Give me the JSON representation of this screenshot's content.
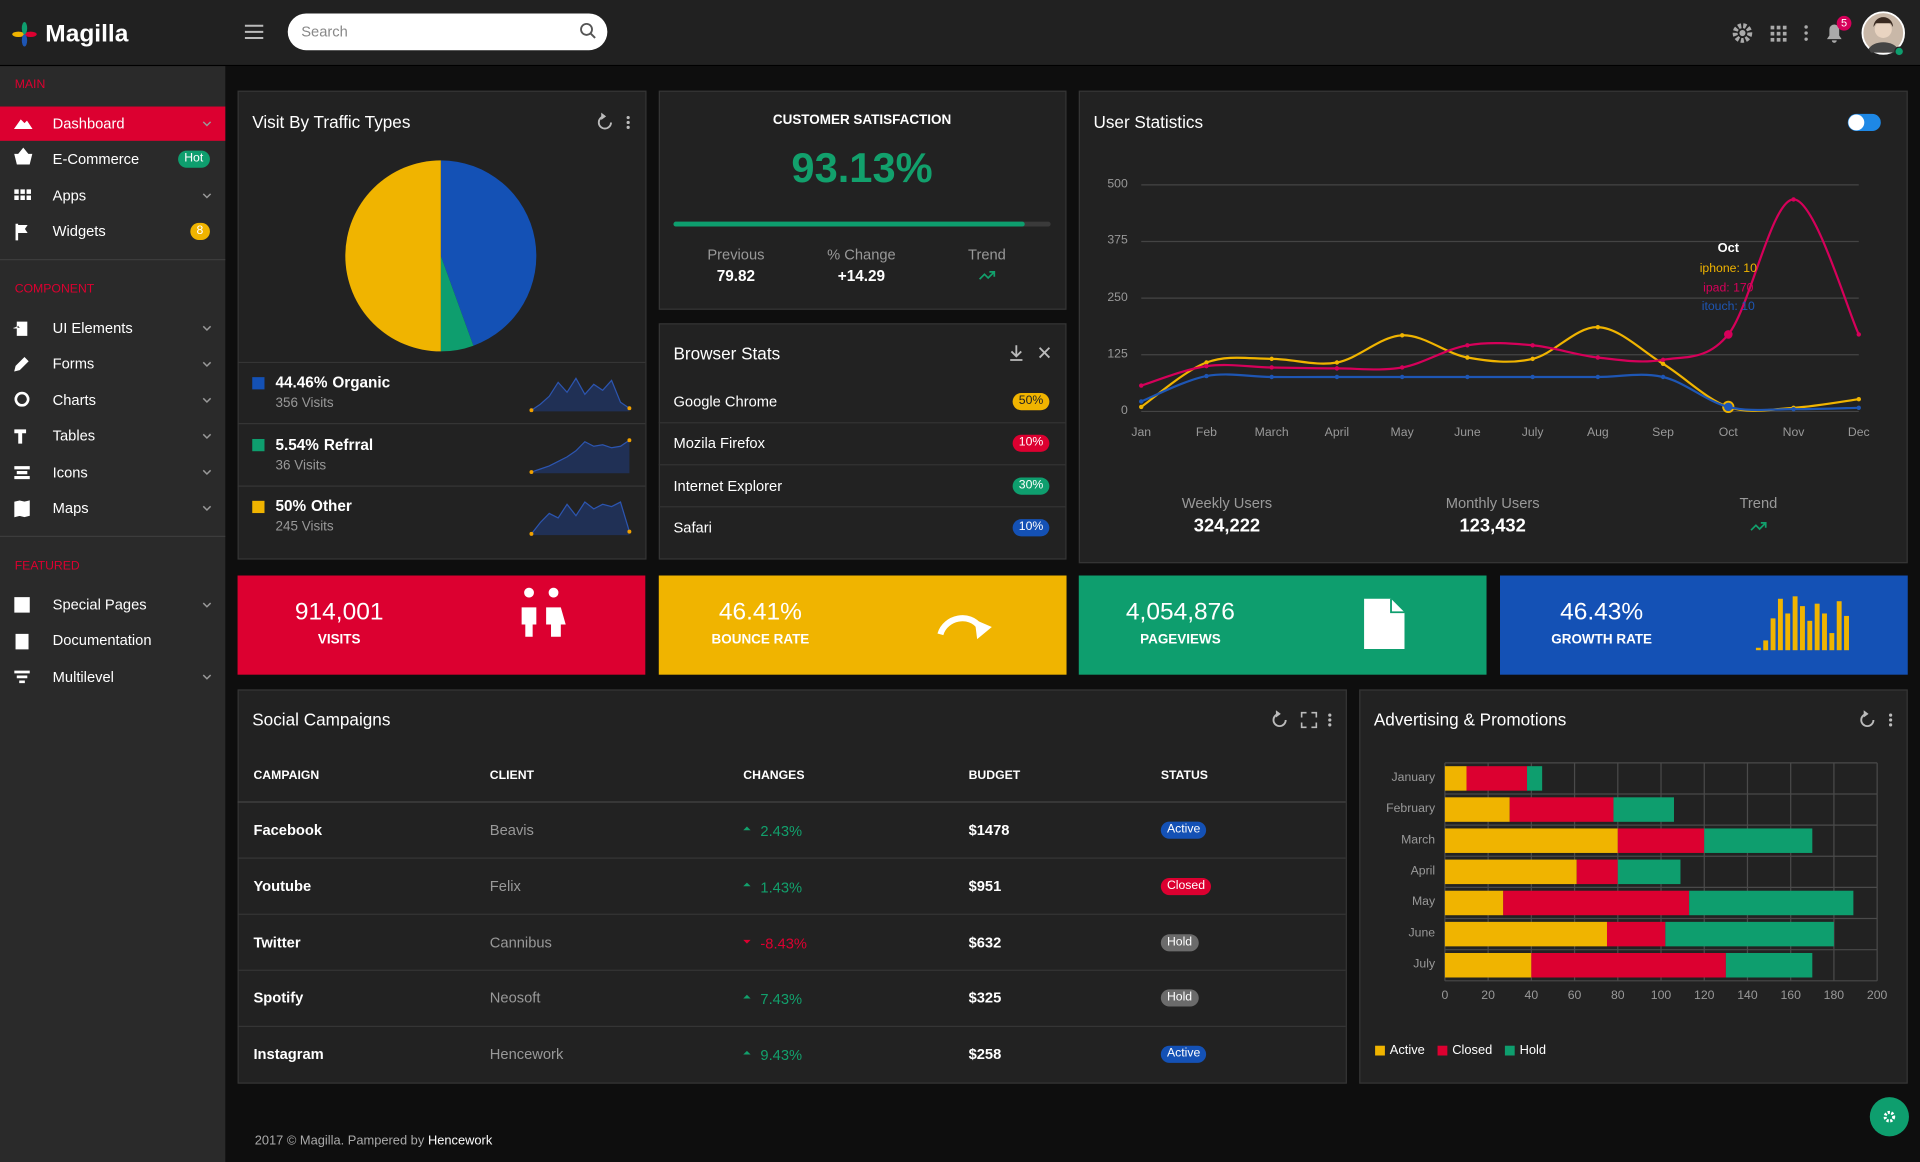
{
  "brand": "Magilla",
  "search_placeholder": "Search",
  "notifications": "5",
  "sidebar": [
    {
      "title": "MAIN",
      "items": [
        {
          "label": "Dashboard"
        },
        {
          "label": "E-Commerce",
          "badge": "Hot",
          "badge_color": "#0e9e6e"
        },
        {
          "label": "Apps"
        },
        {
          "label": "Widgets",
          "badge": "8",
          "badge_color": "#f0b400"
        }
      ]
    },
    {
      "title": "COMPONENT",
      "items": [
        {
          "label": "UI Elements"
        },
        {
          "label": "Forms"
        },
        {
          "label": "Charts"
        },
        {
          "label": "Tables"
        },
        {
          "label": "Icons"
        },
        {
          "label": "Maps"
        }
      ]
    },
    {
      "title": "FEATURED",
      "items": [
        {
          "label": "Special Pages"
        },
        {
          "label": "Documentation"
        },
        {
          "label": "Multilevel"
        }
      ]
    }
  ],
  "satisfaction": {
    "title": "CUSTOMER SATISFACTION",
    "value": 93.13,
    "value_label": "93.13%",
    "lim": [
      0,
      100
    ],
    "stats": [
      {
        "label": "Previous",
        "value": "79.82"
      },
      {
        "label": "% Change",
        "value": "+14.29"
      },
      {
        "label": "Trend"
      }
    ]
  },
  "browser": {
    "title": "Browser Stats",
    "rows": [
      {
        "name": "Google Chrome",
        "share": "50%",
        "color": "#f0b400",
        "text_color": "#222"
      },
      {
        "name": "Mozila Firefox",
        "share": "10%",
        "color": "#dc0030",
        "text_color": "#fff"
      },
      {
        "name": "Internet Explorer",
        "share": "30%",
        "color": "#0e9e6e",
        "text_color": "#fff"
      },
      {
        "name": "Safari",
        "share": "10%",
        "color": "#1451b5",
        "text_color": "#fff"
      }
    ]
  },
  "tiles": [
    {
      "value": "914,001",
      "label": "VISITS",
      "color": "#dc0030"
    },
    {
      "value": "46.41%",
      "label": "BOUNCE RATE",
      "color": "#f0b400"
    },
    {
      "value": "4,054,876",
      "label": "PAGEVIEWS",
      "color": "#0e9e6e"
    },
    {
      "value": "46.43%",
      "label": "GROWTH RATE",
      "color": "#1451b5",
      "bars": [
        2,
        8,
        26,
        42,
        30,
        44,
        36,
        24,
        38,
        30,
        14,
        40,
        28
      ],
      "bar_color": "#f0b400"
    }
  ],
  "campaigns": {
    "title": "Social Campaigns",
    "columns": [
      "CAMPAIGN",
      "CLIENT",
      "CHANGES",
      "BUDGET",
      "STATUS"
    ],
    "rows": [
      {
        "campaign": "Facebook",
        "client": "Beavis",
        "change": "2.43%",
        "budget": "$1478",
        "status": {
          "label": "Active",
          "color": "#1451b5"
        }
      },
      {
        "campaign": "Youtube",
        "client": "Felix",
        "change": "1.43%",
        "budget": "$951",
        "status": {
          "label": "Closed",
          "color": "#dc0030"
        }
      },
      {
        "campaign": "Twitter",
        "client": "Cannibus",
        "change": "-8.43%",
        "budget": "$632",
        "status": {
          "label": "Hold",
          "color": "#6b6b6b"
        }
      },
      {
        "campaign": "Spotify",
        "client": "Neosoft",
        "change": "7.43%",
        "budget": "$325",
        "status": {
          "label": "Hold",
          "color": "#6b6b6b"
        }
      },
      {
        "campaign": "Instagram",
        "client": "Hencework",
        "change": "9.43%",
        "budget": "$258",
        "status": {
          "label": "Active",
          "color": "#1451b5"
        }
      }
    ]
  },
  "footer": {
    "text": "2017 © Magilla. Pampered by",
    "link": "Hencework"
  },
  "chart_data": [
    {
      "type": "pie",
      "title": "Visit By Traffic Types",
      "categories": [
        "Organic",
        "Refrral",
        "Other"
      ],
      "values": [
        44.46,
        5.54,
        50
      ],
      "value_labels": [
        "44.46%",
        "5.54%",
        "50%"
      ],
      "colors": [
        "#1451b5",
        "#0e9e6e",
        "#f0b400"
      ],
      "visits": [
        "356 Visits",
        "36 Visits",
        "245 Visits"
      ],
      "sparklines": [
        [
          2,
          5,
          9,
          16,
          11,
          18,
          10,
          15,
          12,
          17,
          6,
          3
        ],
        [
          2,
          4,
          6,
          9,
          12,
          16,
          22,
          19,
          20,
          18,
          19,
          23
        ],
        [
          3,
          8,
          12,
          10,
          16,
          11,
          17,
          14,
          16,
          15,
          17,
          4
        ]
      ],
      "sparkline_color": "#1f3a78",
      "sparkline_dot": "#f0a000"
    },
    {
      "type": "line",
      "title": "User Statistics",
      "categories": [
        "Jan",
        "Feb",
        "March",
        "April",
        "May",
        "June",
        "July",
        "Aug",
        "Sep",
        "Oct",
        "Nov",
        "Dec"
      ],
      "series": [
        {
          "name": "iphone",
          "color": "#f0b400",
          "values": [
            10,
            108,
            116,
            108,
            168,
            119,
            116,
            186,
            105,
            10,
            8,
            27
          ]
        },
        {
          "name": "ipad",
          "color": "#d6005a",
          "values": [
            57,
            100,
            97,
            95,
            97,
            146,
            146,
            119,
            114,
            170,
            468,
            170
          ]
        },
        {
          "name": "itouch",
          "color": "#1e56b4",
          "values": [
            22,
            78,
            76,
            76,
            76,
            76,
            76,
            76,
            76,
            10,
            5,
            8
          ]
        }
      ],
      "ylim": [
        0,
        500
      ],
      "yticks": [
        0,
        125,
        250,
        375,
        500
      ],
      "grid": true,
      "tooltip": {
        "title": "Oct",
        "lines": [
          "iphone: 10",
          "ipad: 170",
          "itouch: 10"
        ]
      },
      "summary": [
        {
          "label": "Weekly Users",
          "value": "324,222"
        },
        {
          "label": "Monthly Users",
          "value": "123,432"
        },
        {
          "label": "Trend"
        }
      ]
    },
    {
      "type": "bar",
      "orientation": "horizontal",
      "stacked": true,
      "title": "Advertising & Promotions",
      "categories": [
        "January",
        "February",
        "March",
        "April",
        "May",
        "June",
        "July"
      ],
      "series": [
        {
          "name": "Active",
          "color": "#f0b400",
          "values": [
            10,
            30,
            80,
            61,
            27,
            75,
            40
          ]
        },
        {
          "name": "Closed",
          "color": "#dc0030",
          "values": [
            28,
            48,
            40,
            19,
            86,
            27,
            90
          ]
        },
        {
          "name": "Hold",
          "color": "#0e9e6e",
          "values": [
            7,
            28,
            50,
            29,
            76,
            78,
            40
          ]
        }
      ],
      "xlim": [
        0,
        200
      ],
      "xticks": [
        0,
        20,
        40,
        60,
        80,
        100,
        120,
        140,
        160,
        180,
        200
      ],
      "grid": true,
      "legend": "bottom-left"
    }
  ]
}
